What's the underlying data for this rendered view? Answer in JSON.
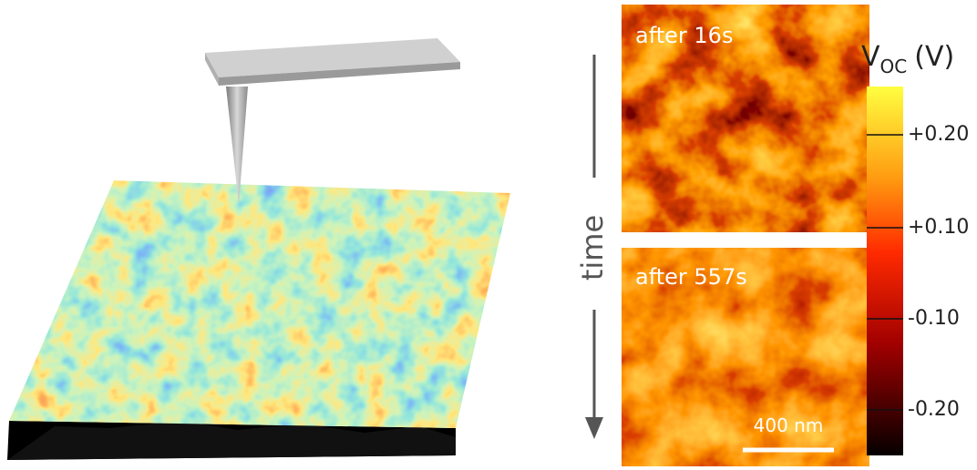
{
  "panels": [
    {
      "label": "after 16s"
    },
    {
      "label": "after 557s"
    }
  ],
  "scale_bar": "400 nm",
  "time_label": "time",
  "colorbar": {
    "symbol": "V",
    "subscript": "OC",
    "unit": "(V)",
    "ticks": [
      "+0.20",
      "+0.10",
      "-0.10",
      "-0.20"
    ]
  }
}
